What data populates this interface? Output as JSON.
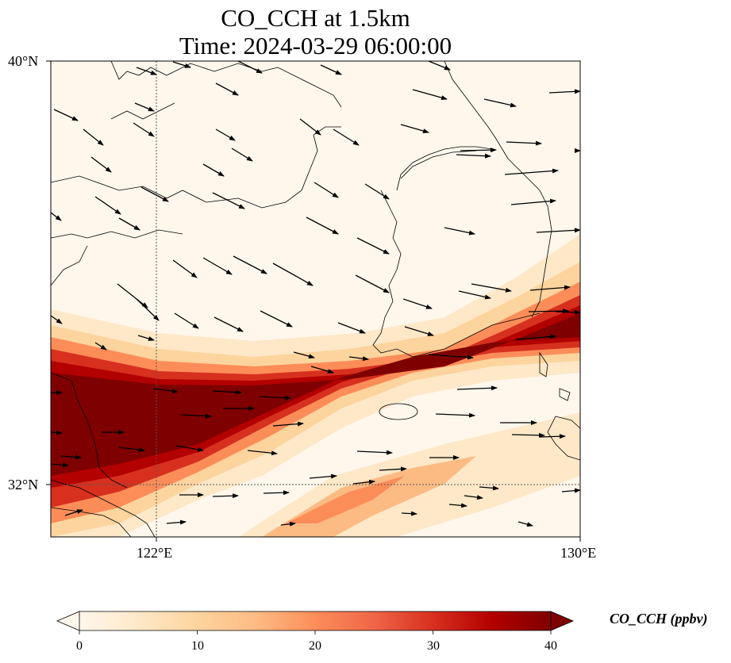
{
  "title": {
    "line1": "CO_CCH at 1.5km",
    "line2": "Time: 2024-03-29 06:00:00"
  },
  "map": {
    "variable": "CO_CCH",
    "level": "1.5km",
    "extent": {
      "lon": [
        118.0,
        130.0
      ],
      "lat": [
        30.8,
        40.0
      ]
    },
    "lat_labels": [
      "40°N",
      "32°N"
    ],
    "lon_labels": [
      "122°E",
      "130°E"
    ],
    "gridlines": {
      "lon": [
        122
      ],
      "lat": [
        32
      ],
      "style": "dotted"
    },
    "wind_vectors": "black arrows, predominantly west-northwest to east-southeast flow",
    "colormap": "OrRd",
    "plume": "high-concentration CO band extending from eastern China coast (~33°N) east-northeast toward Korea (~35°N)"
  },
  "colorbar": {
    "label": "CO_CCH (ppbv)",
    "ticks": [
      "0",
      "10",
      "20",
      "30",
      "40"
    ],
    "min": 0,
    "max": 40,
    "extend": "both",
    "colors": [
      "#fff7ec",
      "#fee8c8",
      "#fdd49e",
      "#fdbb84",
      "#fc8d59",
      "#ef6548",
      "#d7301f",
      "#b30000",
      "#7f0000"
    ]
  }
}
